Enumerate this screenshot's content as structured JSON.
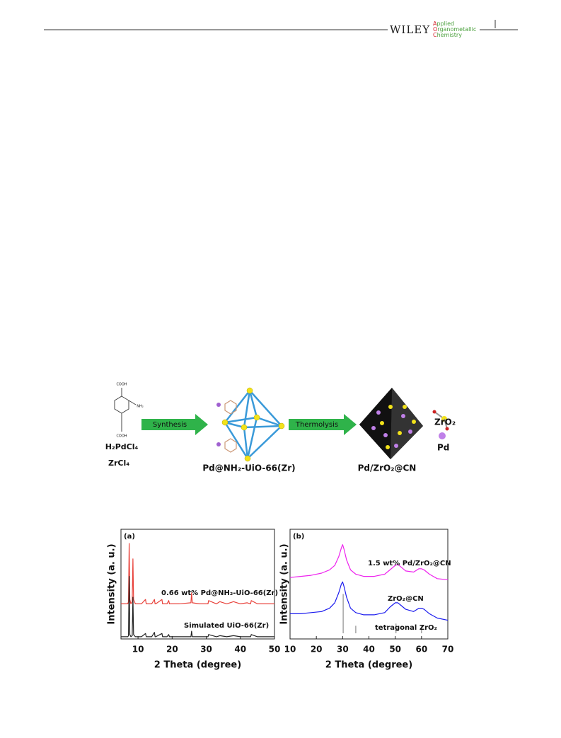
{
  "header": {
    "publisher": "WILEY",
    "journal": [
      "Applied",
      "Organometallic",
      "Chemistry"
    ]
  },
  "scheme": {
    "ligand_groups": [
      "COOH",
      "NH₂",
      "COOH"
    ],
    "precursors": [
      "H₂PdCl₄",
      "ZrCl₄"
    ],
    "steps": [
      "Synthesis",
      "Thermolysis"
    ],
    "products": [
      "Pd@NH₂-UiO-66(Zr)",
      "Pd/ZrO₂@CN"
    ],
    "legend": [
      "ZrO₂",
      "Pd"
    ]
  },
  "chart_data": [
    {
      "type": "line",
      "panel": "(a)",
      "xlabel": "2 Theta (degree)",
      "ylabel": "Intensity (a. u.)",
      "xlim": [
        5,
        50
      ],
      "ylim": [
        0,
        100
      ],
      "xticks": [
        10,
        20,
        30,
        40,
        50
      ],
      "x": [
        5,
        7,
        7.2,
        7.4,
        7.6,
        7.9,
        8.3,
        8.5,
        8.7,
        9.2,
        11,
        12.2,
        12.4,
        14,
        14.8,
        15,
        15.2,
        17,
        17.2,
        17.4,
        18.5,
        19,
        19.2,
        22,
        25.5,
        25.7,
        25.9,
        28,
        30.5,
        30.7,
        33,
        34,
        36,
        38,
        40,
        42,
        43,
        43.2,
        45,
        47,
        50
      ],
      "series": [
        {
          "name": "0.66 wt% Pd@NH₂-UiO-66(Zr)",
          "color": "#e8413a",
          "values": [
            32,
            32,
            34,
            87,
            36,
            32,
            34,
            73,
            36,
            32,
            32,
            36,
            32,
            32,
            36,
            32,
            32,
            36,
            32,
            32,
            32,
            35,
            32,
            32,
            33,
            42,
            33,
            32,
            32,
            35,
            32,
            34,
            32,
            34,
            32,
            33,
            32,
            35,
            32,
            32,
            32
          ]
        },
        {
          "name": "Simulated UiO-66(Zr)",
          "color": "#222222",
          "values": [
            2,
            2,
            3,
            57,
            4,
            2,
            3,
            38,
            4,
            2,
            2,
            5,
            2,
            2,
            6,
            2,
            2,
            5,
            2,
            2,
            2,
            4,
            2,
            2,
            2,
            7,
            2,
            2,
            2,
            4,
            2,
            3,
            2,
            3,
            2,
            2,
            2,
            4,
            2,
            2,
            2
          ]
        }
      ]
    },
    {
      "type": "line",
      "panel": "(b)",
      "xlabel": "2 Theta (degree)",
      "ylabel": "Intensity (a. u.)",
      "xlim": [
        10,
        70
      ],
      "ylim": [
        0,
        100
      ],
      "xticks": [
        10,
        20,
        30,
        40,
        50,
        60,
        70
      ],
      "x": [
        10,
        14,
        18,
        22,
        25,
        27,
        28.5,
        29.5,
        30,
        30.5,
        31.5,
        33,
        35,
        38,
        42,
        46,
        48,
        50,
        51,
        52,
        54,
        57,
        59,
        60,
        61,
        63,
        66,
        70
      ],
      "series": [
        {
          "name": "1.5 wt% Pd/ZrO₂@CN",
          "color": "#ee22ee",
          "values": [
            56,
            57,
            58,
            60,
            63,
            67,
            75,
            83,
            86,
            82,
            72,
            63,
            59,
            57,
            57,
            59,
            63,
            67,
            68,
            66,
            62,
            61,
            64,
            64,
            63,
            59,
            55,
            54
          ]
        },
        {
          "name": "ZrO₂@CN",
          "color": "#1a1aee",
          "values": [
            23,
            23,
            24,
            25,
            28,
            33,
            42,
            50,
            52,
            48,
            38,
            28,
            24,
            22,
            22,
            24,
            29,
            33,
            33,
            31,
            27,
            25,
            28,
            28,
            27,
            23,
            19,
            17
          ]
        },
        {
          "name": "tetragonal ZrO₂",
          "color": "#777777",
          "style": "stick",
          "x": [
            30.2,
            35,
            50.3,
            60
          ],
          "values": [
            41,
            12,
            14,
            12
          ]
        }
      ]
    }
  ]
}
